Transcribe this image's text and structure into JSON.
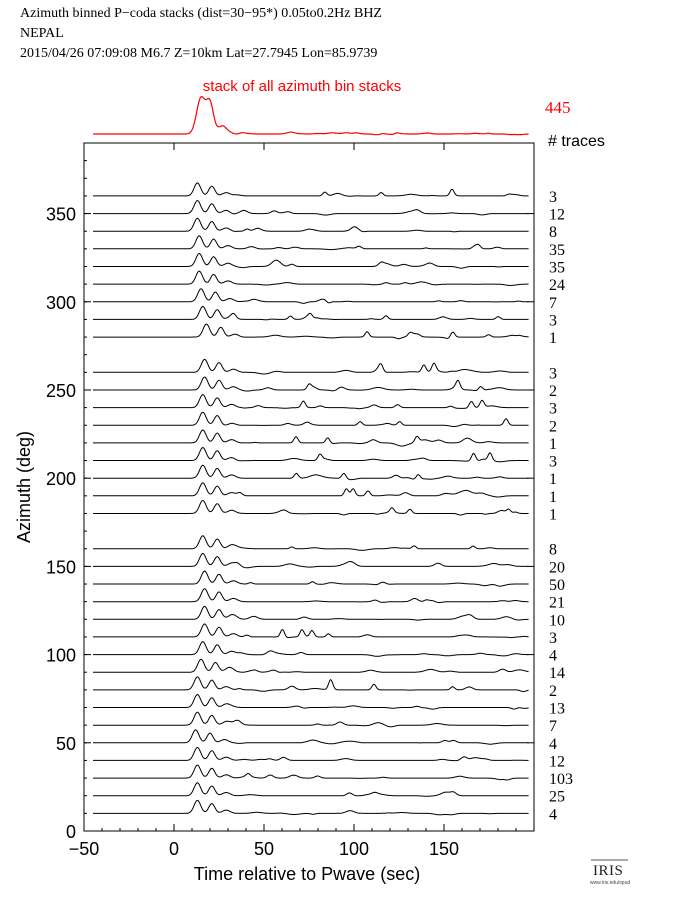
{
  "header": {
    "line1": "Azimuth binned P−coda stacks (dist=30−95*)  0.05to0.2Hz  BHZ",
    "line2": "NEPAL",
    "line3": "2015/04/26  07:09:08  M6.7  Z=10km Lat=27.7945 Lon=85.9739"
  },
  "logo": {
    "name": "IRIS",
    "url_text": "www.iris.edu/spud"
  },
  "colors": {
    "stack": "#ff0000",
    "trace": "#000000",
    "axis": "#000000"
  },
  "chart_data": [
    {
      "type": "line",
      "panel": "stack-of-all",
      "title": "stack of all azimuth bin stacks",
      "count": "445",
      "count_label": "# traces",
      "peak_time": 17,
      "peak_amplitude": 1.0
    },
    {
      "type": "line",
      "panel": "azimuth-bins",
      "xlabel": "Time relative to Pwave (sec)",
      "ylabel": "Azimuth (deg)",
      "xlim": [
        -50,
        200
      ],
      "ylim": [
        0,
        390
      ],
      "xticks": [
        -50,
        0,
        50,
        100,
        150
      ],
      "yticks": [
        0,
        50,
        100,
        150,
        200,
        250,
        300,
        350
      ],
      "grid": false,
      "bins": [
        {
          "azimuth": 360,
          "count": "3",
          "peak": 13
        },
        {
          "azimuth": 350,
          "count": "12",
          "peak": 13
        },
        {
          "azimuth": 340,
          "count": "8",
          "peak": 13
        },
        {
          "azimuth": 330,
          "count": "35",
          "peak": 14
        },
        {
          "azimuth": 320,
          "count": "35",
          "peak": 14
        },
        {
          "azimuth": 310,
          "count": "24",
          "peak": 14
        },
        {
          "azimuth": 300,
          "count": "7",
          "peak": 15
        },
        {
          "azimuth": 290,
          "count": "3",
          "peak": 16
        },
        {
          "azimuth": 280,
          "count": "1",
          "peak": 18
        },
        {
          "azimuth": 260,
          "count": "3",
          "peak": 17
        },
        {
          "azimuth": 250,
          "count": "2",
          "peak": 17
        },
        {
          "azimuth": 240,
          "count": "3",
          "peak": 16
        },
        {
          "azimuth": 230,
          "count": "2",
          "peak": 16
        },
        {
          "azimuth": 220,
          "count": "1",
          "peak": 16
        },
        {
          "azimuth": 210,
          "count": "3",
          "peak": 16
        },
        {
          "azimuth": 200,
          "count": "1",
          "peak": 16
        },
        {
          "azimuth": 190,
          "count": "1",
          "peak": 16
        },
        {
          "azimuth": 180,
          "count": "1",
          "peak": 16
        },
        {
          "azimuth": 160,
          "count": "8",
          "peak": 16
        },
        {
          "azimuth": 150,
          "count": "20",
          "peak": 16
        },
        {
          "azimuth": 140,
          "count": "50",
          "peak": 17
        },
        {
          "azimuth": 130,
          "count": "21",
          "peak": 17
        },
        {
          "azimuth": 120,
          "count": "10",
          "peak": 17
        },
        {
          "azimuth": 110,
          "count": "3",
          "peak": 17
        },
        {
          "azimuth": 100,
          "count": "4",
          "peak": 16
        },
        {
          "azimuth": 90,
          "count": "14",
          "peak": 15
        },
        {
          "azimuth": 80,
          "count": "2",
          "peak": 13
        },
        {
          "azimuth": 70,
          "count": "13",
          "peak": 13
        },
        {
          "azimuth": 60,
          "count": "7",
          "peak": 13
        },
        {
          "azimuth": 50,
          "count": "4",
          "peak": 12
        },
        {
          "azimuth": 40,
          "count": "12",
          "peak": 13
        },
        {
          "azimuth": 30,
          "count": "103",
          "peak": 13
        },
        {
          "azimuth": 20,
          "count": "25",
          "peak": 13
        },
        {
          "azimuth": 10,
          "count": "4",
          "peak": 13
        }
      ]
    }
  ]
}
